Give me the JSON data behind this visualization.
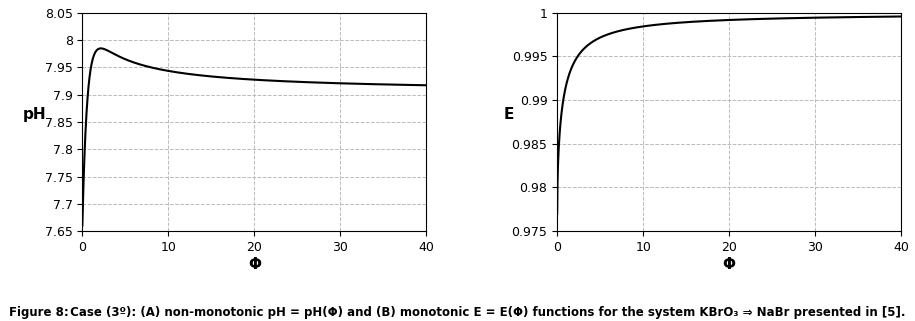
{
  "left_xlim": [
    0,
    40
  ],
  "left_ylim": [
    7.65,
    8.05
  ],
  "left_yticks": [
    7.65,
    7.7,
    7.75,
    7.8,
    7.85,
    7.9,
    7.95,
    8.0,
    8.05
  ],
  "left_ytick_labels": [
    "7.65",
    "7.7",
    "7.75",
    "7.8",
    "7.85",
    "7.9",
    "7.95",
    "8",
    "8.05"
  ],
  "left_xticks": [
    0,
    10,
    20,
    30,
    40
  ],
  "left_xlabel": "Φ",
  "left_ylabel": "pH",
  "right_xlim": [
    0,
    40
  ],
  "right_ylim": [
    0.975,
    1.0
  ],
  "right_yticks": [
    0.975,
    0.98,
    0.985,
    0.99,
    0.995,
    1.0
  ],
  "right_ytick_labels": [
    "0.975",
    "0.98",
    "0.985",
    "0.99",
    "0.995",
    "1"
  ],
  "right_xticks": [
    0,
    10,
    20,
    30,
    40
  ],
  "right_xlabel": "Φ",
  "right_ylabel": "E",
  "line_color": "#000000",
  "grid_color": "#bbbbbb",
  "grid_style": "--",
  "background_color": "#ffffff",
  "fig_width": 9.15,
  "fig_height": 3.21,
  "dpi": 100
}
